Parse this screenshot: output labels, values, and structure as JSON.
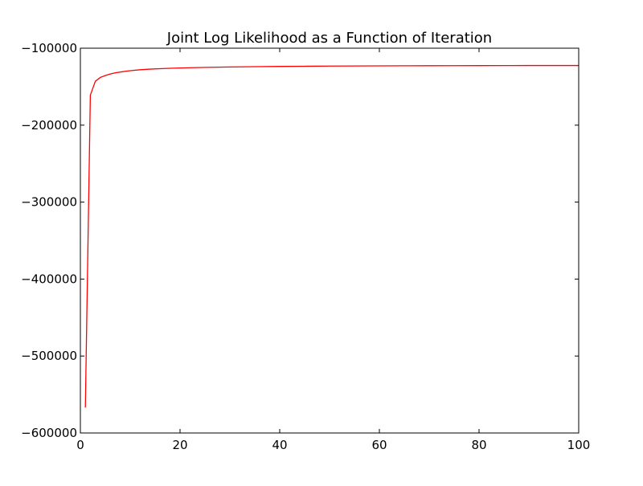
{
  "chart_data": {
    "type": "line",
    "title": "Joint Log Likelihood as a Function of Iteration",
    "xlabel": "",
    "ylabel": "",
    "xlim": [
      0,
      100
    ],
    "ylim": [
      -600000,
      -100000
    ],
    "xticks": [
      0,
      20,
      40,
      60,
      80,
      100
    ],
    "xtick_labels": [
      "0",
      "20",
      "40",
      "60",
      "80",
      "100"
    ],
    "yticks": [
      -100000,
      -200000,
      -300000,
      -400000,
      -500000,
      -600000
    ],
    "ytick_labels": [
      "−100000",
      "−200000",
      "−300000",
      "−400000",
      "−500000",
      "−600000"
    ],
    "grid": false,
    "legend": "none",
    "series": [
      {
        "color": "#ff0000",
        "x": [
          1,
          2,
          3,
          4,
          5,
          6,
          7,
          8,
          9,
          10,
          12,
          14,
          16,
          18,
          20,
          25,
          30,
          35,
          40,
          45,
          50,
          55,
          60,
          65,
          70,
          75,
          80,
          85,
          90,
          95,
          100
        ],
        "y": [
          -567000,
          -161000,
          -143000,
          -138000,
          -135500,
          -133500,
          -132000,
          -131000,
          -130000,
          -129200,
          -128000,
          -127200,
          -126600,
          -126100,
          -125700,
          -124900,
          -124400,
          -124000,
          -123700,
          -123450,
          -123250,
          -123100,
          -122950,
          -122850,
          -122750,
          -122680,
          -122620,
          -122570,
          -122530,
          -122500,
          -122480
        ]
      }
    ]
  }
}
